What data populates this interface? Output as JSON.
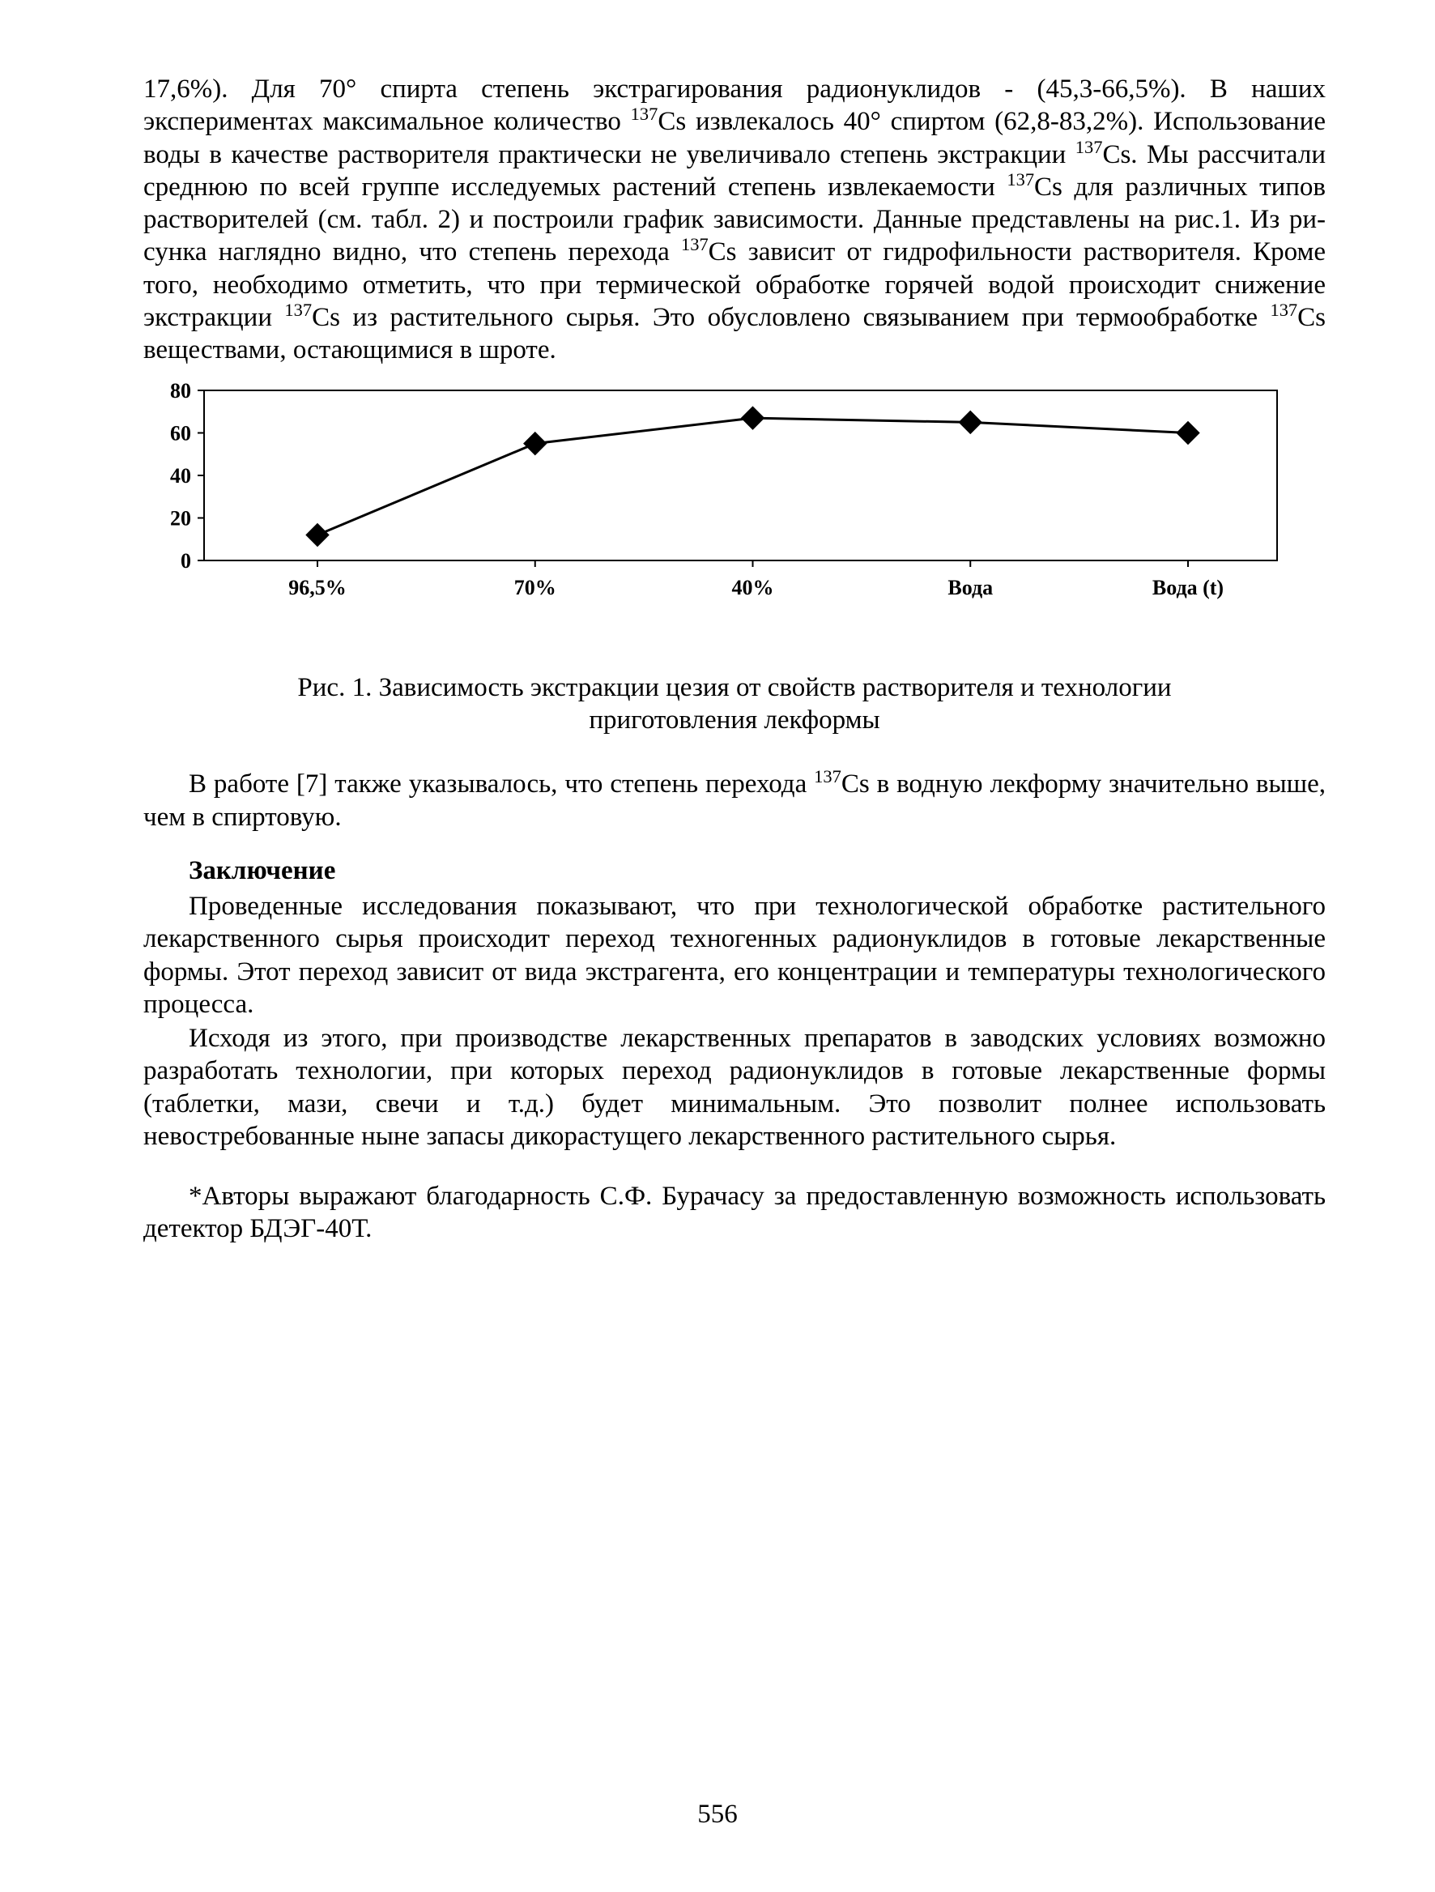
{
  "intro_text": "17,6%). Для 70° спирта степень экстрагирования радионуклидов - (45,3-66,5%). В наших экспериментах максимальное количество ¹³⁷Cs извлекалось 40° спиртом (62,8-83,2%). Использование воды в качестве растворителя практически не увеличивало степень экстракции ¹³⁷Cs. Мы рассчитали среднюю по всей группе исследуемых растений степень извлекаемости ¹³⁷Cs для различных типов растворителей (см. табл. 2) и построили график зависимости. Данные представлены на рис.1. Из рисунка наглядно видно, что степень перехода ¹³⁷Cs зависит от гидрофильности растворителя. Кроме того, необходимо отметить, что при термической обработке горячей водой происходит снижение экстракции ¹³⁷Cs из растительного сырья. Это обусловлено связыванием при термообработке ¹³⁷Cs веществами, остающимися в шроте.",
  "figure": {
    "type": "line",
    "title_fontsize": 26,
    "categories": [
      "96,5%",
      "70%",
      "40%",
      "Вода",
      "Вода (t)"
    ],
    "values": [
      12,
      55,
      67,
      65,
      60
    ],
    "ylim": [
      0,
      80
    ],
    "ytick_step": 20,
    "yticks": [
      0,
      20,
      40,
      60,
      80
    ],
    "line_color": "#000000",
    "line_width": 3,
    "marker_style": "diamond",
    "marker_size": 14,
    "marker_color": "#000000",
    "background_color": "#ffffff",
    "frame_color": "#000000",
    "frame_width": 2,
    "tick_length": 8,
    "font_family": "Times New Roman",
    "font_weight": "bold"
  },
  "fig_caption": "Рис. 1. Зависимость экстракции цезия от свойств растворителя и технологии приготовления лекформы",
  "after_caption": "В работе [7] также указывалось, что степень перехода ¹³⁷Cs в водную лекформу значительно выше, чем в спиртовую.",
  "conclusion_heading": "Заключение",
  "conclusion_p1": "Проведенные исследования показывают, что при технологической обработке растительного лекарственного сырья происходит переход техногенных радионуклидов в готовые лекарственные формы. Этот переход зависит от вида экстрагента, его концентрации и температуры технологического процесса.",
  "conclusion_p2": "Исходя из этого, при производстве лекарственных препаратов в заводских условиях возможно разработать технологии, при которых переход радионуклидов в готовые лекарственные формы (таблетки, мази, свечи и т.д.) будет минимальным. Это позволит полнее использовать невостребованные ныне запасы дикорастущего лекарственного растительного сырья.",
  "acknowledgment": "*Авторы выражают благодарность С.Ф. Бурачасу за предоставленную возможность использовать детектор БДЭГ-40Т.",
  "page_number": "556"
}
